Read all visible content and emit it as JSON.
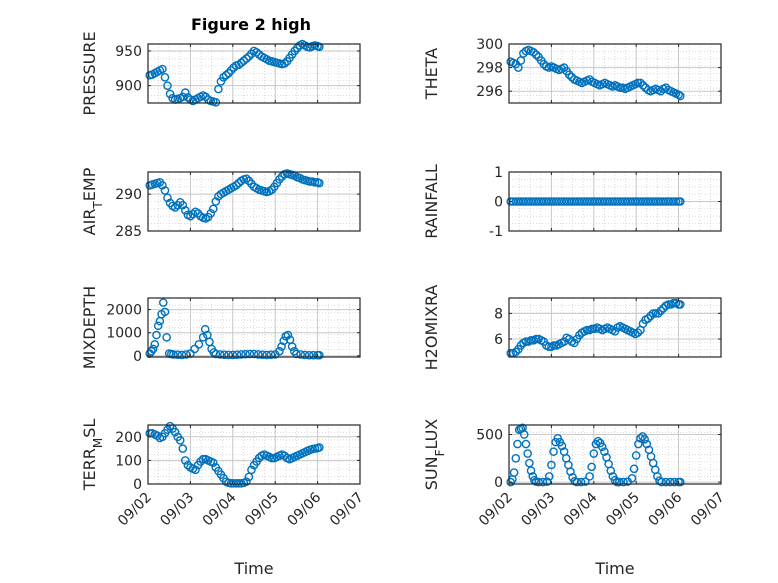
{
  "figure": {
    "title": "Figure 2 high"
  },
  "chart_data": [
    {
      "id": "pressure",
      "type": "scatter",
      "title": "Figure 2 high",
      "ylabel": "PRESSURE",
      "ylim": [
        875,
        960
      ],
      "yticks": [
        900,
        950
      ],
      "xlim": [
        0,
        5
      ],
      "xticks": [],
      "grid": true,
      "x": [
        0.04,
        0.1,
        0.16,
        0.22,
        0.28,
        0.34,
        0.4,
        0.46,
        0.52,
        0.58,
        0.64,
        0.7,
        0.76,
        0.82,
        0.88,
        0.94,
        1.0,
        1.06,
        1.12,
        1.18,
        1.24,
        1.3,
        1.36,
        1.42,
        1.48,
        1.54,
        1.6,
        1.66,
        1.72,
        1.78,
        1.84,
        1.9,
        1.96,
        2.02,
        2.08,
        2.14,
        2.2,
        2.26,
        2.32,
        2.38,
        2.44,
        2.5,
        2.56,
        2.62,
        2.68,
        2.74,
        2.8,
        2.86,
        2.92,
        2.98,
        3.04,
        3.1,
        3.16,
        3.22,
        3.28,
        3.34,
        3.4,
        3.46,
        3.52,
        3.58,
        3.64,
        3.7,
        3.76,
        3.82,
        3.88,
        3.94,
        4.0,
        4.04
      ],
      "y": [
        915,
        916,
        918,
        920,
        922,
        924,
        912,
        900,
        888,
        882,
        880,
        881,
        882,
        884,
        890,
        883,
        880,
        878,
        880,
        882,
        884,
        886,
        884,
        880,
        878,
        877,
        876,
        895,
        906,
        912,
        915,
        918,
        922,
        926,
        929,
        930,
        933,
        936,
        939,
        942,
        946,
        950,
        948,
        945,
        942,
        940,
        938,
        936,
        935,
        934,
        933,
        932,
        931,
        932,
        935,
        940,
        945,
        950,
        954,
        958,
        960,
        958,
        956,
        955,
        957,
        958,
        957,
        956
      ]
    },
    {
      "id": "theta",
      "type": "scatter",
      "ylabel": "THETA",
      "ylim": [
        295,
        300
      ],
      "yticks": [
        296,
        298,
        300
      ],
      "xlim": [
        0,
        5
      ],
      "xticks": [],
      "grid": true,
      "x": [
        0.04,
        0.1,
        0.16,
        0.22,
        0.28,
        0.34,
        0.4,
        0.46,
        0.52,
        0.58,
        0.64,
        0.7,
        0.76,
        0.82,
        0.88,
        0.94,
        1.0,
        1.06,
        1.12,
        1.18,
        1.24,
        1.3,
        1.36,
        1.42,
        1.48,
        1.54,
        1.6,
        1.66,
        1.72,
        1.78,
        1.84,
        1.9,
        1.96,
        2.02,
        2.08,
        2.14,
        2.2,
        2.26,
        2.32,
        2.38,
        2.44,
        2.5,
        2.56,
        2.62,
        2.68,
        2.74,
        2.8,
        2.86,
        2.92,
        2.98,
        3.04,
        3.1,
        3.16,
        3.22,
        3.28,
        3.34,
        3.4,
        3.46,
        3.52,
        3.58,
        3.64,
        3.7,
        3.76,
        3.82,
        3.88,
        3.94,
        4.0,
        4.04
      ],
      "y": [
        298.5,
        298.4,
        298.3,
        298.0,
        298.6,
        299.2,
        299.4,
        299.5,
        299.4,
        299.3,
        299.1,
        298.9,
        298.6,
        298.3,
        298.1,
        298.0,
        298.1,
        298.0,
        297.9,
        297.8,
        297.9,
        298.0,
        297.7,
        297.4,
        297.2,
        297.0,
        296.9,
        296.8,
        296.7,
        296.8,
        296.9,
        297.0,
        296.8,
        296.7,
        296.6,
        296.5,
        296.6,
        296.7,
        296.6,
        296.5,
        296.4,
        296.5,
        296.4,
        296.3,
        296.3,
        296.2,
        296.3,
        296.4,
        296.5,
        296.6,
        296.7,
        296.7,
        296.5,
        296.3,
        296.1,
        296.0,
        296.1,
        296.2,
        296.1,
        296.0,
        296.2,
        296.3,
        296.1,
        296.0,
        295.9,
        295.8,
        295.7,
        295.6
      ]
    },
    {
      "id": "air_temp",
      "type": "scatter",
      "ylabel": "AIR_TEMP",
      "ylim": [
        285,
        293
      ],
      "yticks": [
        285,
        290
      ],
      "xlim": [
        0,
        5
      ],
      "xticks": [],
      "grid": true,
      "x": [
        0.04,
        0.1,
        0.16,
        0.22,
        0.28,
        0.34,
        0.4,
        0.46,
        0.52,
        0.58,
        0.64,
        0.7,
        0.76,
        0.82,
        0.88,
        0.94,
        1.0,
        1.06,
        1.12,
        1.18,
        1.24,
        1.3,
        1.36,
        1.42,
        1.48,
        1.54,
        1.6,
        1.66,
        1.72,
        1.78,
        1.84,
        1.9,
        1.96,
        2.02,
        2.08,
        2.14,
        2.2,
        2.26,
        2.32,
        2.38,
        2.44,
        2.5,
        2.56,
        2.62,
        2.68,
        2.74,
        2.8,
        2.86,
        2.92,
        2.98,
        3.04,
        3.1,
        3.16,
        3.22,
        3.28,
        3.34,
        3.4,
        3.46,
        3.52,
        3.58,
        3.64,
        3.7,
        3.76,
        3.82,
        3.88,
        3.94,
        4.0,
        4.04
      ],
      "y": [
        291.2,
        291.3,
        291.4,
        291.5,
        291.6,
        291.2,
        290.5,
        289.5,
        288.8,
        288.4,
        288.2,
        288.5,
        288.9,
        288.5,
        287.8,
        287.2,
        287.0,
        287.3,
        287.6,
        287.4,
        287.0,
        286.8,
        286.7,
        286.9,
        287.4,
        288.0,
        289.0,
        289.7,
        290.0,
        290.2,
        290.4,
        290.6,
        290.8,
        291.0,
        291.2,
        291.5,
        291.8,
        292.0,
        292.1,
        291.8,
        291.4,
        291.0,
        290.8,
        290.6,
        290.5,
        290.4,
        290.3,
        290.4,
        290.6,
        291.0,
        291.5,
        292.0,
        292.4,
        292.7,
        292.8,
        292.7,
        292.6,
        292.5,
        292.3,
        292.2,
        292.0,
        291.9,
        291.8,
        291.7,
        291.7,
        291.6,
        291.6,
        291.5
      ]
    },
    {
      "id": "rainfall",
      "type": "scatter",
      "ylabel": "RAINFALL",
      "ylim": [
        -1,
        1
      ],
      "yticks": [
        -1,
        0,
        1
      ],
      "xlim": [
        0,
        5
      ],
      "xticks": [],
      "grid": true,
      "x": [
        0.04,
        0.1,
        0.16,
        0.22,
        0.28,
        0.34,
        0.4,
        0.46,
        0.52,
        0.58,
        0.64,
        0.7,
        0.76,
        0.82,
        0.88,
        0.94,
        1.0,
        1.06,
        1.12,
        1.18,
        1.24,
        1.3,
        1.36,
        1.42,
        1.48,
        1.54,
        1.6,
        1.66,
        1.72,
        1.78,
        1.84,
        1.9,
        1.96,
        2.02,
        2.08,
        2.14,
        2.2,
        2.26,
        2.32,
        2.38,
        2.44,
        2.5,
        2.56,
        2.62,
        2.68,
        2.74,
        2.8,
        2.86,
        2.92,
        2.98,
        3.04,
        3.1,
        3.16,
        3.22,
        3.28,
        3.34,
        3.4,
        3.46,
        3.52,
        3.58,
        3.64,
        3.7,
        3.76,
        3.82,
        3.88,
        3.94,
        4.0,
        4.04
      ],
      "y": [
        0,
        0,
        0,
        0,
        0,
        0,
        0,
        0,
        0,
        0,
        0,
        0,
        0,
        0,
        0,
        0,
        0,
        0,
        0,
        0,
        0,
        0,
        0,
        0,
        0,
        0,
        0,
        0,
        0,
        0,
        0,
        0,
        0,
        0,
        0,
        0,
        0,
        0,
        0,
        0,
        0,
        0,
        0,
        0,
        0,
        0,
        0,
        0,
        0,
        0,
        0,
        0,
        0,
        0,
        0,
        0,
        0,
        0,
        0,
        0,
        0,
        0,
        0,
        0,
        0,
        0,
        0,
        0
      ]
    },
    {
      "id": "mixdepth",
      "type": "scatter",
      "ylabel": "MIXDEPTH",
      "ylim": [
        -50,
        2500
      ],
      "yticks": [
        0,
        1000,
        2000
      ],
      "xlim": [
        0,
        5
      ],
      "xticks": [],
      "grid": true,
      "x": [
        0.04,
        0.08,
        0.12,
        0.16,
        0.2,
        0.24,
        0.28,
        0.32,
        0.36,
        0.4,
        0.44,
        0.5,
        0.55,
        0.6,
        0.7,
        0.8,
        0.9,
        1.0,
        1.1,
        1.2,
        1.3,
        1.35,
        1.4,
        1.45,
        1.5,
        1.55,
        1.6,
        1.7,
        1.8,
        1.9,
        2.0,
        2.1,
        2.2,
        2.3,
        2.4,
        2.5,
        2.6,
        2.7,
        2.8,
        2.9,
        3.0,
        3.1,
        3.15,
        3.2,
        3.25,
        3.3,
        3.35,
        3.4,
        3.45,
        3.5,
        3.6,
        3.7,
        3.8,
        3.9,
        4.0,
        4.04
      ],
      "y": [
        100,
        200,
        300,
        500,
        900,
        1300,
        1500,
        1800,
        2300,
        1900,
        800,
        100,
        80,
        60,
        50,
        40,
        60,
        100,
        300,
        500,
        800,
        1150,
        900,
        600,
        300,
        150,
        80,
        60,
        50,
        40,
        40,
        50,
        60,
        70,
        80,
        80,
        60,
        50,
        40,
        50,
        60,
        200,
        400,
        650,
        850,
        900,
        700,
        400,
        200,
        80,
        60,
        40,
        30,
        30,
        30,
        30
      ]
    },
    {
      "id": "h2omixra",
      "type": "scatter",
      "ylabel": "H2OMIXRA",
      "ylim": [
        4.6,
        9.2
      ],
      "yticks": [
        6,
        8
      ],
      "xlim": [
        0,
        5
      ],
      "xticks": [],
      "grid": true,
      "x": [
        0.04,
        0.1,
        0.16,
        0.22,
        0.28,
        0.34,
        0.4,
        0.46,
        0.52,
        0.58,
        0.64,
        0.7,
        0.76,
        0.82,
        0.88,
        0.94,
        1.0,
        1.06,
        1.12,
        1.18,
        1.24,
        1.3,
        1.36,
        1.42,
        1.48,
        1.54,
        1.6,
        1.66,
        1.72,
        1.78,
        1.84,
        1.9,
        1.96,
        2.02,
        2.08,
        2.14,
        2.2,
        2.26,
        2.32,
        2.38,
        2.44,
        2.5,
        2.56,
        2.62,
        2.68,
        2.74,
        2.8,
        2.86,
        2.92,
        2.98,
        3.04,
        3.1,
        3.16,
        3.22,
        3.28,
        3.34,
        3.4,
        3.46,
        3.52,
        3.58,
        3.64,
        3.7,
        3.76,
        3.82,
        3.88,
        3.94,
        4.0,
        4.04
      ],
      "y": [
        4.9,
        4.9,
        5.0,
        5.2,
        5.5,
        5.7,
        5.8,
        5.8,
        5.9,
        5.9,
        6.0,
        6.0,
        5.9,
        5.8,
        5.5,
        5.4,
        5.4,
        5.5,
        5.5,
        5.6,
        5.7,
        5.8,
        6.1,
        6.0,
        5.8,
        5.7,
        6.0,
        6.3,
        6.5,
        6.6,
        6.7,
        6.7,
        6.8,
        6.8,
        6.9,
        6.8,
        6.7,
        6.8,
        6.9,
        6.8,
        6.7,
        6.6,
        6.9,
        7.0,
        6.9,
        6.8,
        6.7,
        6.6,
        6.5,
        6.4,
        6.5,
        6.7,
        7.2,
        7.5,
        7.6,
        7.8,
        8.0,
        8.0,
        8.0,
        8.2,
        8.4,
        8.6,
        8.7,
        8.7,
        8.8,
        8.8,
        8.7,
        8.7
      ]
    },
    {
      "id": "terr_msl",
      "type": "scatter",
      "ylabel": "TERR_MSL",
      "ylim": [
        0,
        250
      ],
      "yticks": [
        0,
        100,
        200
      ],
      "xlim": [
        0,
        5
      ],
      "xticks": [
        "09/02",
        "09/03",
        "09/04",
        "09/05",
        "09/06",
        "09/07"
      ],
      "xtickvals": [
        0,
        1,
        2,
        3,
        4,
        5
      ],
      "xlabel": "Time",
      "grid": true,
      "x": [
        0.04,
        0.1,
        0.16,
        0.22,
        0.28,
        0.34,
        0.4,
        0.46,
        0.52,
        0.58,
        0.64,
        0.7,
        0.76,
        0.82,
        0.88,
        0.94,
        1.0,
        1.06,
        1.12,
        1.18,
        1.24,
        1.3,
        1.36,
        1.42,
        1.48,
        1.54,
        1.6,
        1.66,
        1.72,
        1.78,
        1.84,
        1.9,
        1.96,
        2.02,
        2.08,
        2.14,
        2.2,
        2.26,
        2.32,
        2.38,
        2.44,
        2.5,
        2.56,
        2.62,
        2.68,
        2.74,
        2.8,
        2.86,
        2.92,
        2.98,
        3.04,
        3.1,
        3.16,
        3.22,
        3.28,
        3.34,
        3.4,
        3.46,
        3.52,
        3.58,
        3.64,
        3.7,
        3.76,
        3.82,
        3.88,
        3.94,
        4.0,
        4.04
      ],
      "y": [
        215,
        215,
        210,
        205,
        195,
        200,
        215,
        230,
        245,
        235,
        220,
        200,
        185,
        150,
        100,
        80,
        70,
        65,
        60,
        80,
        95,
        105,
        105,
        100,
        95,
        90,
        70,
        55,
        40,
        25,
        10,
        5,
        3,
        3,
        3,
        3,
        3,
        5,
        10,
        30,
        60,
        80,
        95,
        110,
        120,
        125,
        120,
        115,
        110,
        110,
        115,
        120,
        125,
        120,
        110,
        105,
        110,
        115,
        120,
        125,
        130,
        135,
        140,
        145,
        148,
        150,
        152,
        155
      ]
    },
    {
      "id": "sun_flux",
      "type": "scatter",
      "ylabel": "SUN_FLUX",
      "ylim": [
        -20,
        600
      ],
      "yticks": [
        0,
        500
      ],
      "xlim": [
        0,
        5
      ],
      "xticks": [
        "09/02",
        "09/03",
        "09/04",
        "09/05",
        "09/06",
        "09/07"
      ],
      "xtickvals": [
        0,
        1,
        2,
        3,
        4,
        5
      ],
      "xlabel": "Time",
      "grid": true,
      "x": [
        0.04,
        0.08,
        0.12,
        0.16,
        0.2,
        0.24,
        0.28,
        0.32,
        0.36,
        0.4,
        0.44,
        0.48,
        0.52,
        0.56,
        0.6,
        0.64,
        0.7,
        0.8,
        0.9,
        0.95,
        1.0,
        1.05,
        1.1,
        1.15,
        1.2,
        1.25,
        1.3,
        1.35,
        1.4,
        1.45,
        1.5,
        1.55,
        1.6,
        1.7,
        1.8,
        1.9,
        1.95,
        2.0,
        2.05,
        2.1,
        2.15,
        2.2,
        2.25,
        2.3,
        2.35,
        2.4,
        2.45,
        2.5,
        2.55,
        2.6,
        2.7,
        2.8,
        2.9,
        2.95,
        3.0,
        3.05,
        3.1,
        3.15,
        3.2,
        3.25,
        3.3,
        3.35,
        3.4,
        3.45,
        3.5,
        3.55,
        3.6,
        3.7,
        3.8,
        3.9,
        4.0,
        4.04
      ],
      "y": [
        0,
        30,
        100,
        250,
        400,
        550,
        560,
        570,
        500,
        400,
        300,
        200,
        120,
        60,
        20,
        5,
        0,
        0,
        5,
        60,
        180,
        320,
        420,
        460,
        420,
        380,
        320,
        250,
        180,
        110,
        50,
        10,
        0,
        0,
        5,
        60,
        160,
        300,
        400,
        430,
        410,
        370,
        320,
        260,
        190,
        120,
        60,
        20,
        0,
        0,
        0,
        5,
        40,
        140,
        280,
        400,
        460,
        480,
        450,
        400,
        340,
        270,
        200,
        130,
        60,
        15,
        0,
        0,
        0,
        0,
        0,
        0
      ]
    }
  ]
}
